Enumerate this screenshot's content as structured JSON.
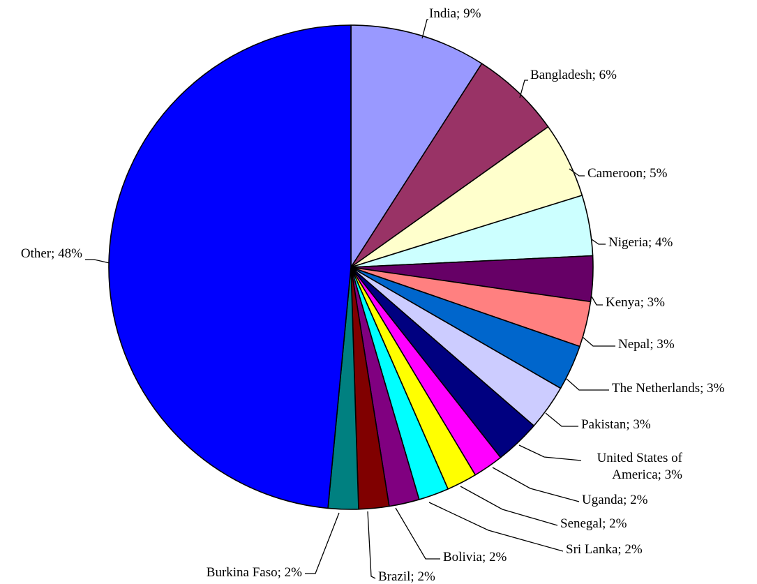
{
  "chart_data": {
    "type": "pie",
    "title": "",
    "start_angle_deg": 0,
    "direction": "clockwise",
    "slices": [
      {
        "label": "India; 9%",
        "category": "India",
        "value": 9,
        "color": "#9999FF"
      },
      {
        "label": "Bangladesh; 6%",
        "category": "Bangladesh",
        "value": 6,
        "color": "#993366"
      },
      {
        "label": "Cameroon; 5%",
        "category": "Cameroon",
        "value": 5,
        "color": "#FFFFCC"
      },
      {
        "label": "Nigeria; 4%",
        "category": "Nigeria",
        "value": 4,
        "color": "#CCFFFF"
      },
      {
        "label": "Kenya; 3%",
        "category": "Kenya",
        "value": 3,
        "color": "#660066"
      },
      {
        "label": "Nepal; 3%",
        "category": "Nepal",
        "value": 3,
        "color": "#FF8080"
      },
      {
        "label": "The Netherlands; 3%",
        "category": "The Netherlands",
        "value": 3,
        "color": "#0066CC"
      },
      {
        "label": "Pakistan; 3%",
        "category": "Pakistan",
        "value": 3,
        "color": "#CCCCFF"
      },
      {
        "label": "United States of America; 3%",
        "category": "United States of America",
        "value": 3,
        "color": "#000080"
      },
      {
        "label": "Uganda; 2%",
        "category": "Uganda",
        "value": 2,
        "color": "#FF00FF"
      },
      {
        "label": "Senegal; 2%",
        "category": "Senegal",
        "value": 2,
        "color": "#FFFF00"
      },
      {
        "label": "Sri Lanka; 2%",
        "category": "Sri Lanka",
        "value": 2,
        "color": "#00FFFF"
      },
      {
        "label": "Bolivia; 2%",
        "category": "Bolivia",
        "value": 2,
        "color": "#800080"
      },
      {
        "label": "Brazil; 2%",
        "category": "Brazil",
        "value": 2,
        "color": "#800000"
      },
      {
        "label": "Burkina Faso; 2%",
        "category": "Burkina Faso",
        "value": 2,
        "color": "#008080"
      },
      {
        "label": "Other; 48%",
        "category": "Other",
        "value": 48,
        "color": "#0000FF"
      }
    ]
  }
}
